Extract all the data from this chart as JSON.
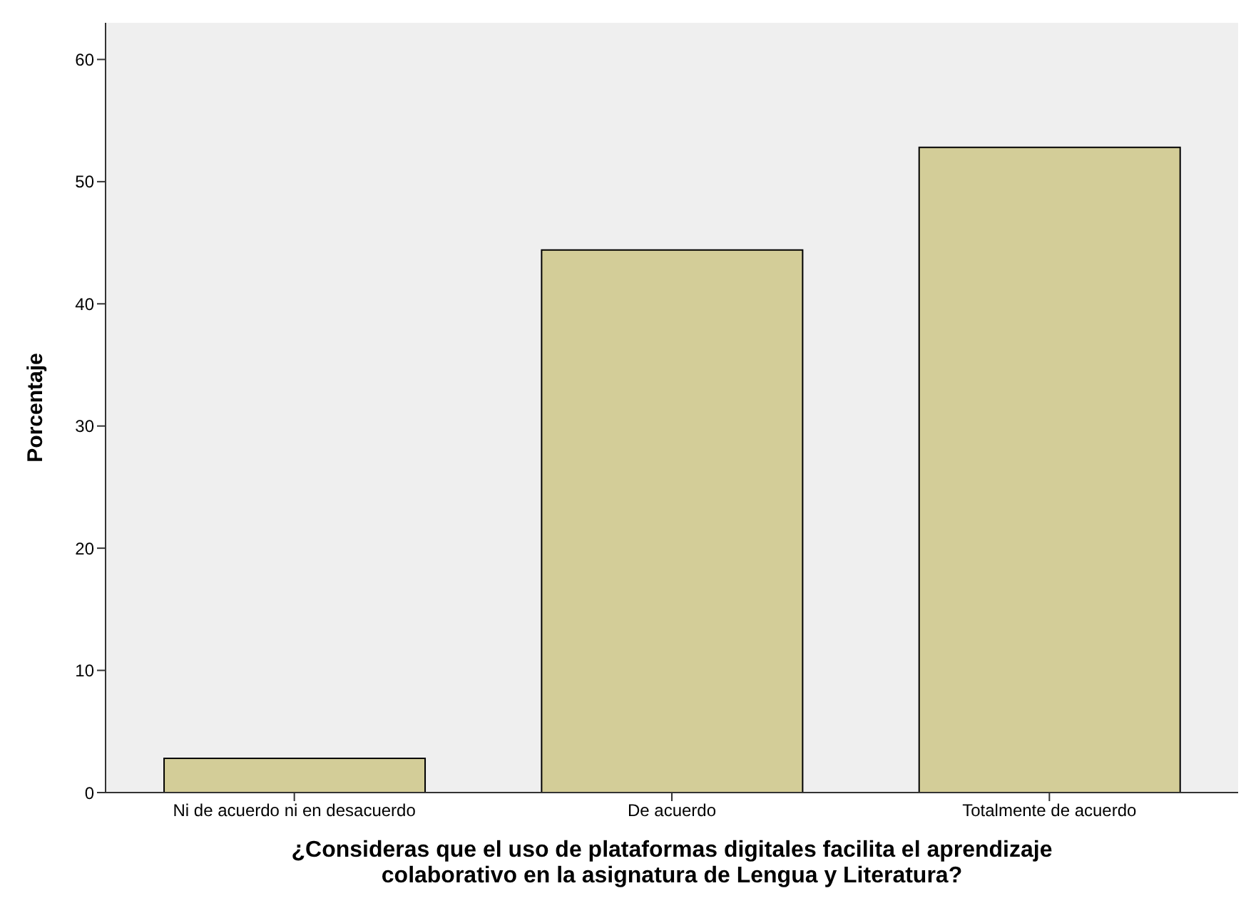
{
  "chart_data": {
    "type": "bar",
    "xlabel": "¿Consideras que el uso de plataformas digitales facilita el aprendizaje colaborativo en la asignatura de Lengua y Literatura?",
    "ylabel": "Porcentaje",
    "categories": [
      "Ni de acuerdo ni en desacuerdo",
      "De acuerdo",
      "Totalmente de acuerdo"
    ],
    "values": [
      2.8,
      44.4,
      52.8
    ],
    "color": "#d3cd98",
    "ylim": [
      0,
      63
    ],
    "yticks": [
      0,
      10,
      20,
      30,
      40,
      50,
      60
    ],
    "grid": false
  }
}
